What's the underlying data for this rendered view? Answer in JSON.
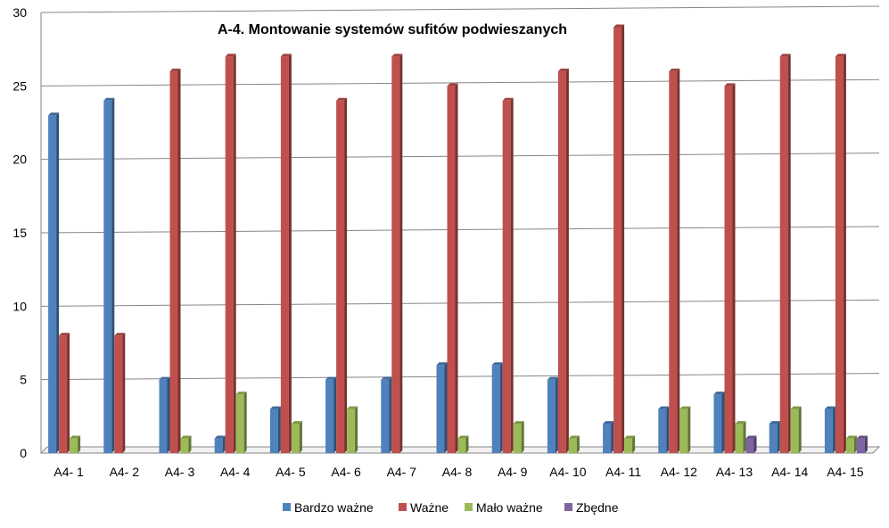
{
  "chart_data": {
    "type": "bar",
    "title": "A-4. Montowanie systemów sufitów podwieszanych",
    "categories": [
      "A4- 1",
      "A4- 2",
      "A4- 3",
      "A4- 4",
      "A4- 5",
      "A4- 6",
      "A4- 7",
      "A4- 8",
      "A4- 9",
      "A4- 10",
      "A4- 11",
      "A4- 12",
      "A4- 13",
      "A4- 14",
      "A4- 15"
    ],
    "series": [
      {
        "name": "Bardzo ważne",
        "color": "#4f81bd",
        "values": [
          23,
          24,
          5,
          1,
          3,
          5,
          5,
          6,
          6,
          5,
          2,
          3,
          4,
          2,
          3
        ]
      },
      {
        "name": "Ważne",
        "color": "#c0504d",
        "values": [
          8,
          8,
          26,
          27,
          27,
          24,
          27,
          25,
          24,
          26,
          29,
          26,
          25,
          27,
          27
        ]
      },
      {
        "name": "Mało ważne",
        "color": "#9bbb59",
        "values": [
          1,
          0,
          1,
          4,
          2,
          3,
          0,
          1,
          2,
          1,
          1,
          3,
          2,
          3,
          1
        ]
      },
      {
        "name": "Zbędne",
        "color": "#8064a2",
        "values": [
          0,
          0,
          0,
          0,
          0,
          0,
          0,
          0,
          0,
          0,
          0,
          0,
          1,
          0,
          1
        ]
      }
    ],
    "yticks": [
      "0",
      "5",
      "10",
      "15",
      "20",
      "25",
      "30"
    ],
    "ylim": [
      0,
      30
    ],
    "grid": true,
    "legend_position": "bottom"
  }
}
